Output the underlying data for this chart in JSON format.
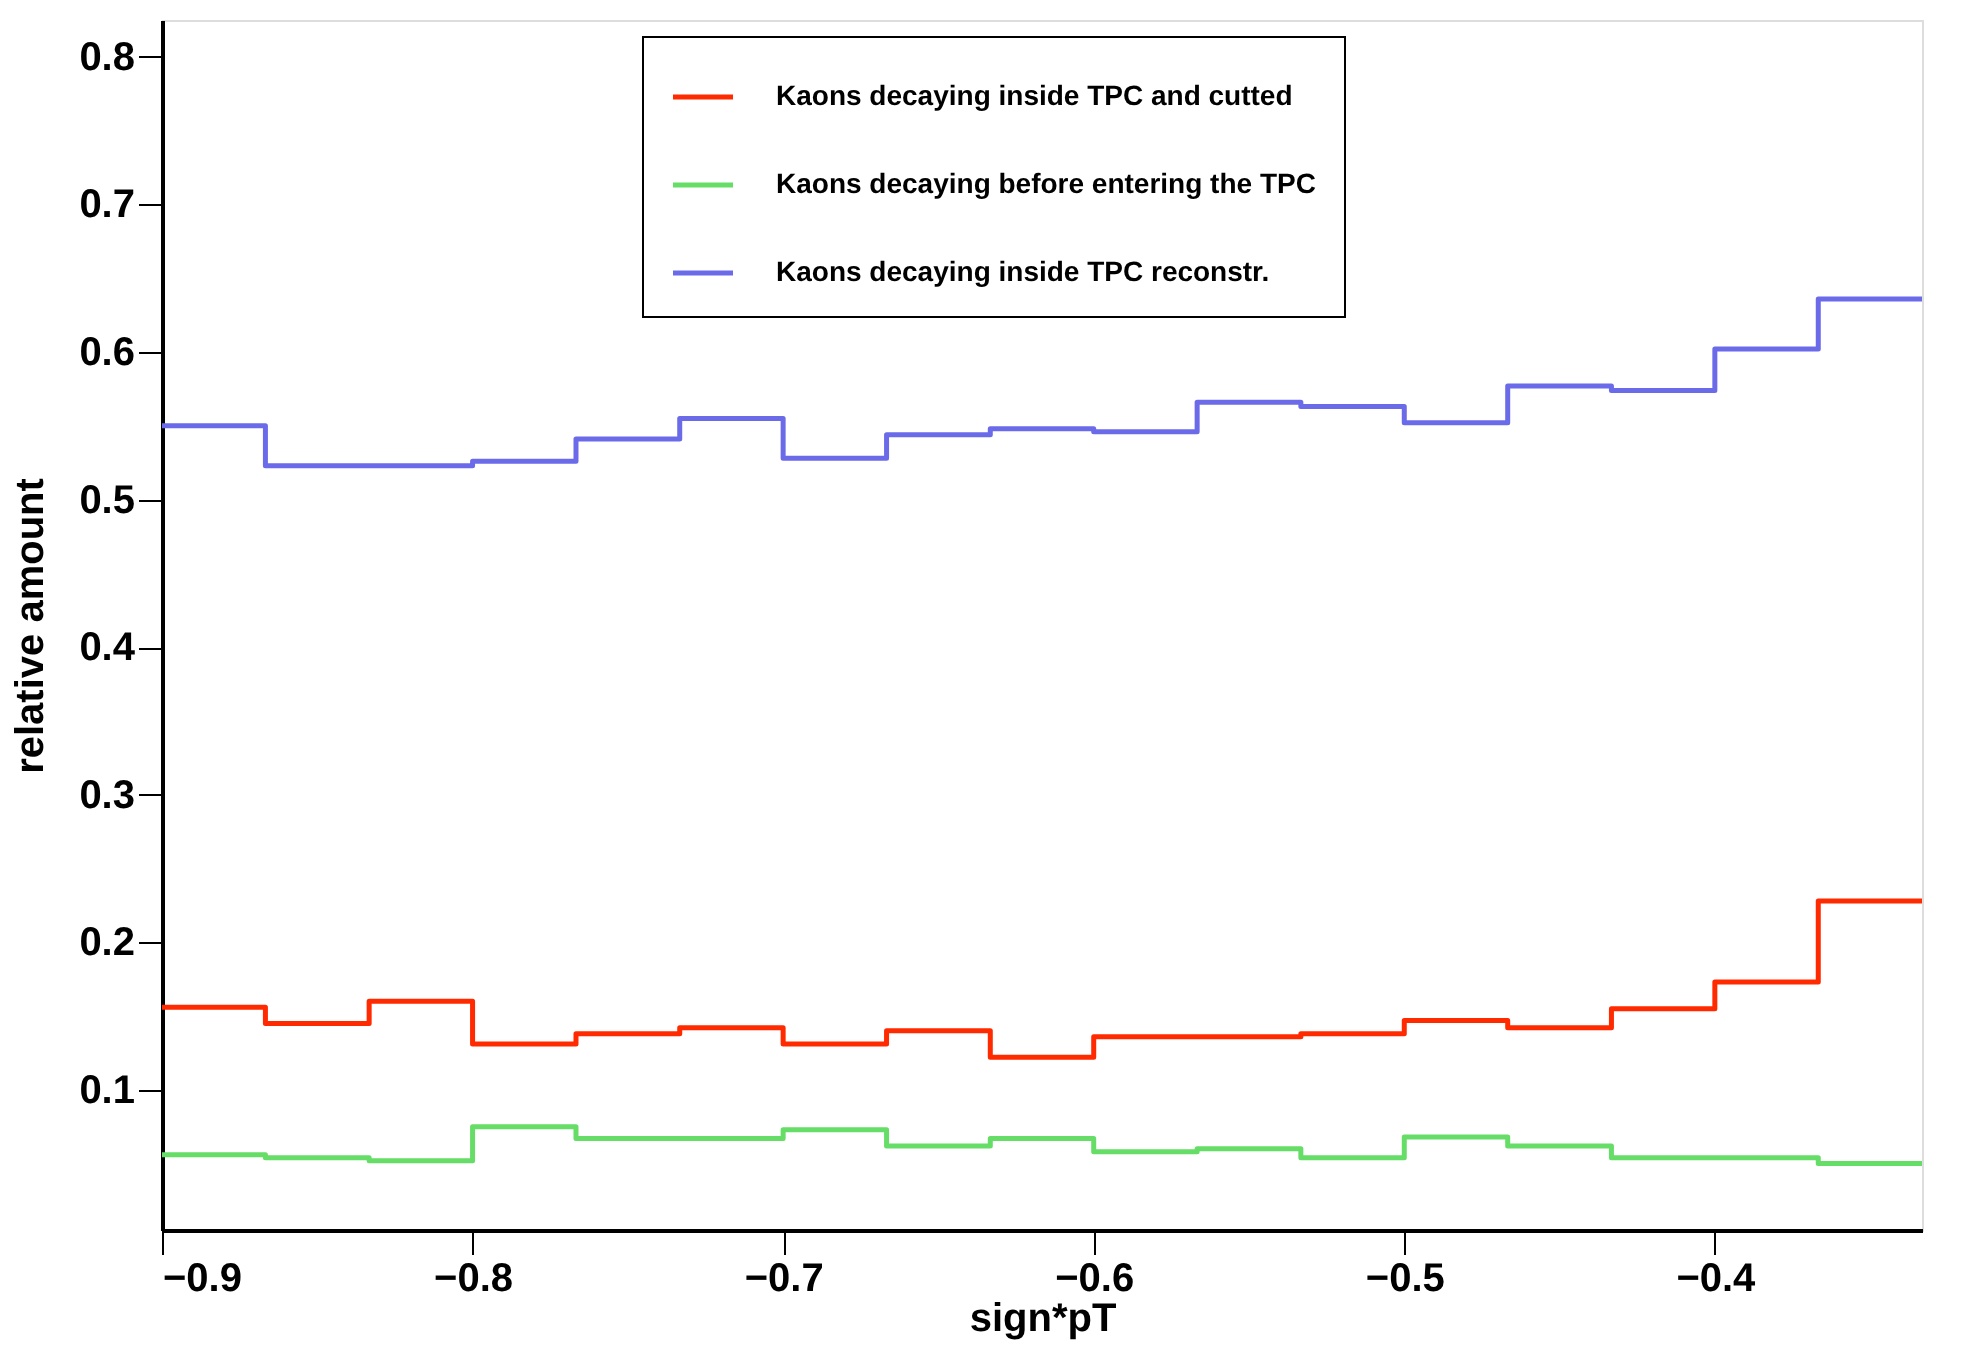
{
  "chart_data": {
    "type": "histogram",
    "xlabel": "sign*pT",
    "ylabel": "relative amount",
    "bins": [
      -0.9,
      -0.8667,
      -0.8333,
      -0.8,
      -0.7667,
      -0.7333,
      -0.7,
      -0.6667,
      -0.6333,
      -0.6,
      -0.5667,
      -0.5333,
      -0.5,
      -0.4667,
      -0.4333,
      -0.4,
      -0.3667,
      -0.3333
    ],
    "series": [
      {
        "name": "Kaons decaying inside TPC and cutted",
        "color": "#ff2a00",
        "values": [
          0.156,
          0.145,
          0.16,
          0.131,
          0.138,
          0.142,
          0.131,
          0.14,
          0.122,
          0.136,
          0.136,
          0.138,
          0.147,
          0.142,
          0.155,
          0.173,
          0.228
        ]
      },
      {
        "name": "Kaons decaying before entering the TPC",
        "color": "#66dd66",
        "values": [
          0.056,
          0.054,
          0.052,
          0.075,
          0.067,
          0.067,
          0.073,
          0.062,
          0.067,
          0.058,
          0.06,
          0.054,
          0.068,
          0.062,
          0.054,
          0.054,
          0.05
        ]
      },
      {
        "name": "Kaons decaying inside TPC reconstr.",
        "color": "#6b6bea",
        "values": [
          0.55,
          0.523,
          0.523,
          0.526,
          0.541,
          0.555,
          0.528,
          0.544,
          0.548,
          0.546,
          0.566,
          0.563,
          0.552,
          0.577,
          0.574,
          0.602,
          0.636
        ]
      }
    ],
    "xlim": [
      -0.9,
      -0.3333
    ],
    "xticks": [
      -0.9,
      -0.8,
      -0.7,
      -0.6,
      -0.5,
      -0.4
    ],
    "ylim": [
      0.005,
      0.825
    ],
    "yticks": [
      0.1,
      0.2,
      0.3,
      0.4,
      0.5,
      0.6,
      0.7,
      0.8
    ],
    "grid": false,
    "legend": "top"
  }
}
